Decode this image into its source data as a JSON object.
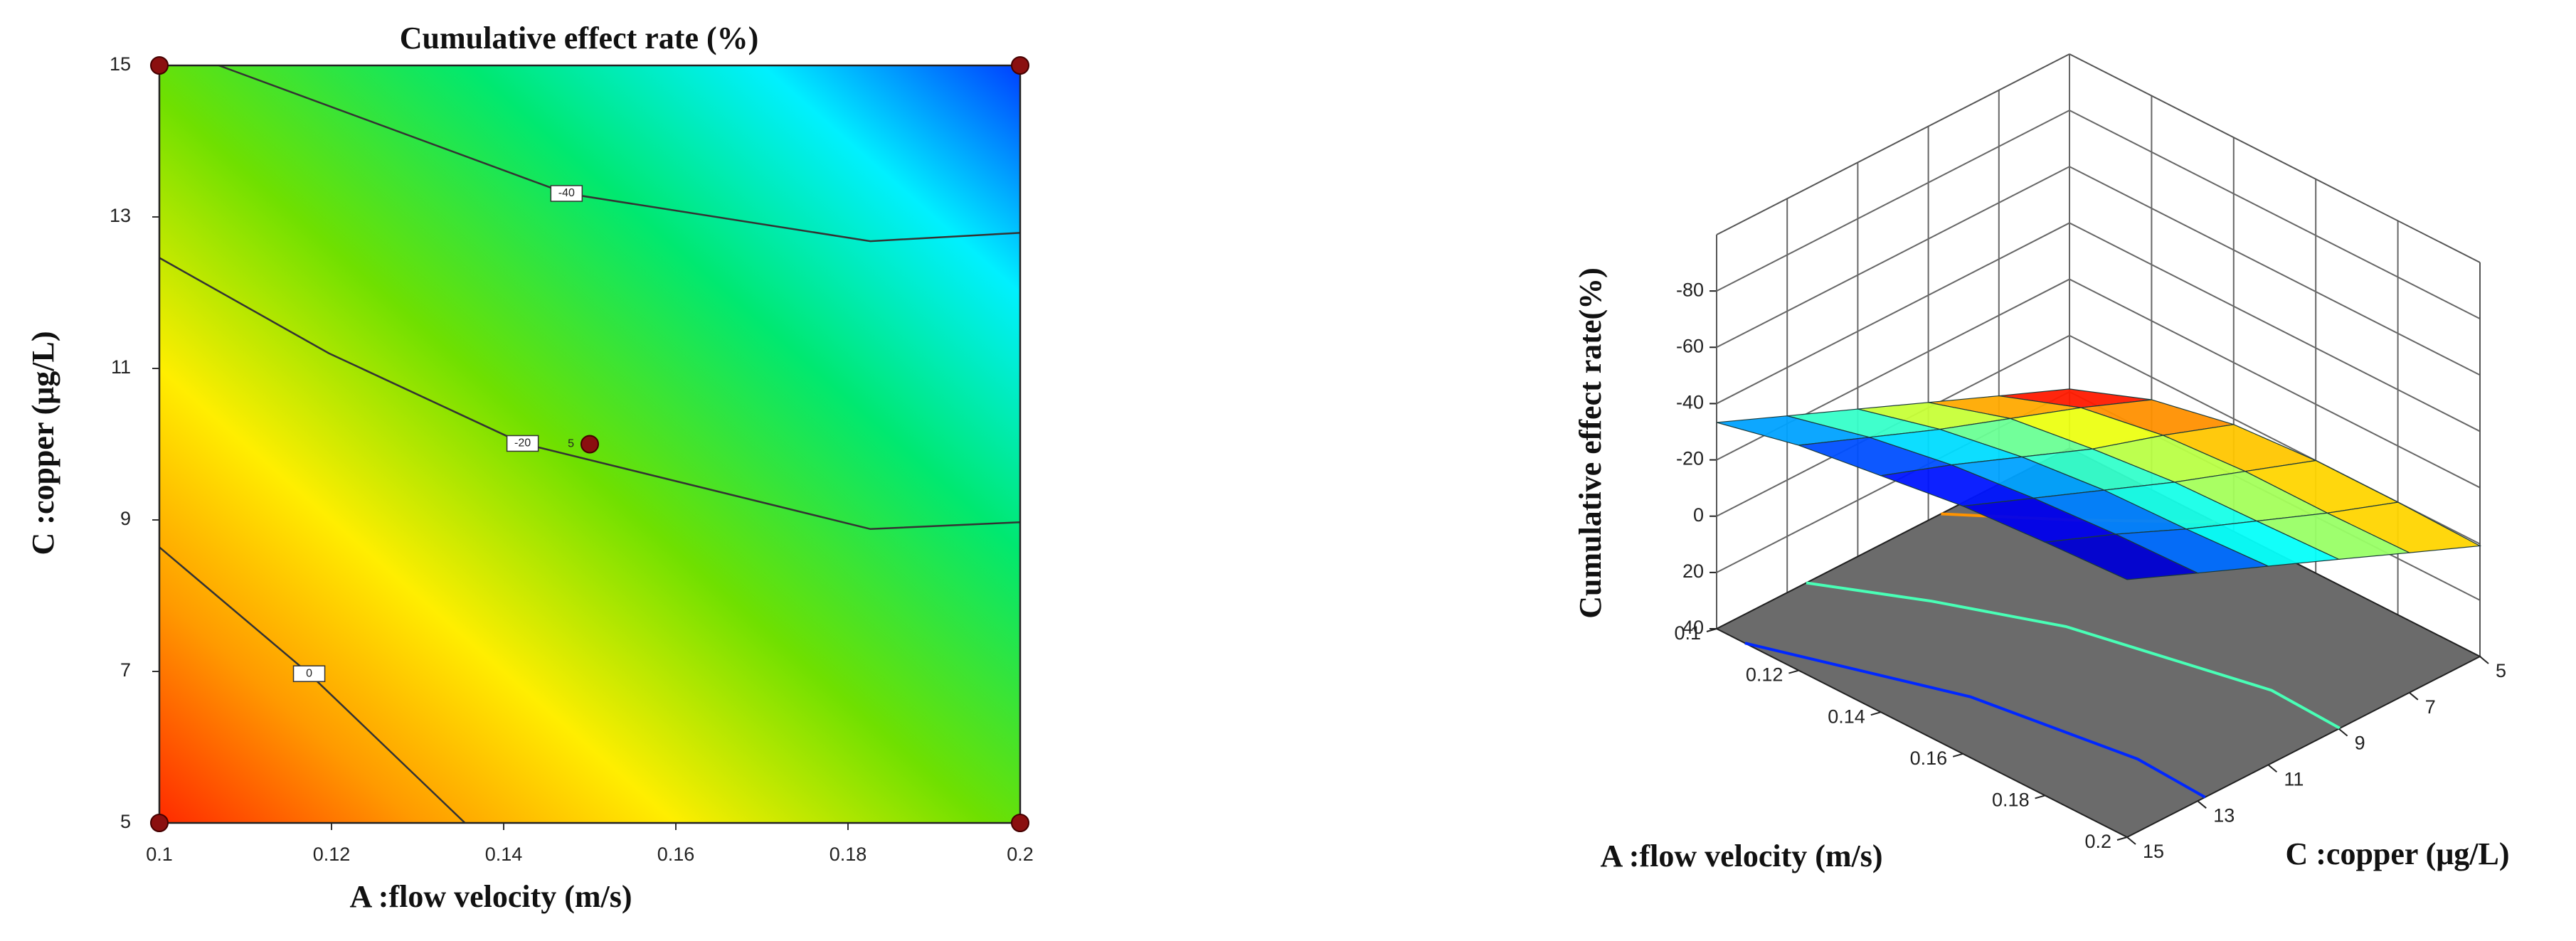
{
  "chart_data": [
    {
      "type": "contour",
      "title": "Cumulative effect rate (%)",
      "x_label": "A :flow velocity (m/s)",
      "y_label": "C :copper (μg/L)",
      "xlim": [
        0.1,
        0.2
      ],
      "ylim": [
        5,
        15
      ],
      "xticks": [
        0.1,
        0.12,
        0.14,
        0.16,
        0.18,
        0.2
      ],
      "yticks": [
        5,
        7,
        9,
        11,
        13,
        15
      ],
      "contours": [
        {
          "level": -40,
          "x": [
            0.1069,
            0.1473,
            0.1826,
            0.2
          ],
          "y": [
            15,
            13.31,
            12.68,
            12.79
          ]
        },
        {
          "level": -20,
          "x": [
            0.1,
            0.1197,
            0.1422,
            0.1826,
            0.2
          ],
          "y": [
            12.46,
            11.2,
            10.01,
            8.88,
            8.97
          ]
        },
        {
          "level": 0,
          "x": [
            0.1,
            0.1174,
            0.1355
          ],
          "y": [
            8.64,
            6.97,
            5
          ]
        }
      ],
      "design_points": {
        "x": [
          0.1,
          0.1,
          0.2,
          0.2,
          0.15
        ],
        "y": [
          5,
          15,
          5,
          15,
          10
        ]
      },
      "center_replicates": 5
    },
    {
      "type": "surface",
      "z_label": "Cumulative effect rate(%)",
      "x_label": "A :flow velocity (m/s)",
      "y_label": "C :copper (μg/L)",
      "xlim": [
        0.1,
        0.2
      ],
      "ylim": [
        5,
        15
      ],
      "zlim": [
        40,
        -100
      ],
      "xticks": [
        0.1,
        0.12,
        0.14,
        0.16,
        0.18,
        0.2
      ],
      "yticks": [
        5,
        7,
        9,
        11,
        13,
        15
      ],
      "zticks": [
        40,
        20,
        0,
        -20,
        -40,
        -60,
        -80
      ],
      "x": [
        0.1,
        0.12,
        0.14,
        0.16,
        0.18,
        0.2
      ],
      "y": [
        5,
        7,
        9,
        11,
        13,
        15
      ],
      "z": [
        [
          19,
          8.6,
          -1.9,
          -12.4,
          -22.8,
          -33.3
        ],
        [
          8,
          -2,
          -11,
          -20,
          -30,
          -40
        ],
        [
          2,
          -7,
          -15,
          -25,
          -35,
          -44
        ],
        [
          0,
          -9,
          -18,
          -28,
          -38,
          -48
        ],
        [
          0,
          -9,
          -19,
          -29,
          -40,
          -50
        ],
        [
          0.7,
          -9.7,
          -20.2,
          -30.6,
          -41,
          -51.5
        ]
      ]
    }
  ]
}
